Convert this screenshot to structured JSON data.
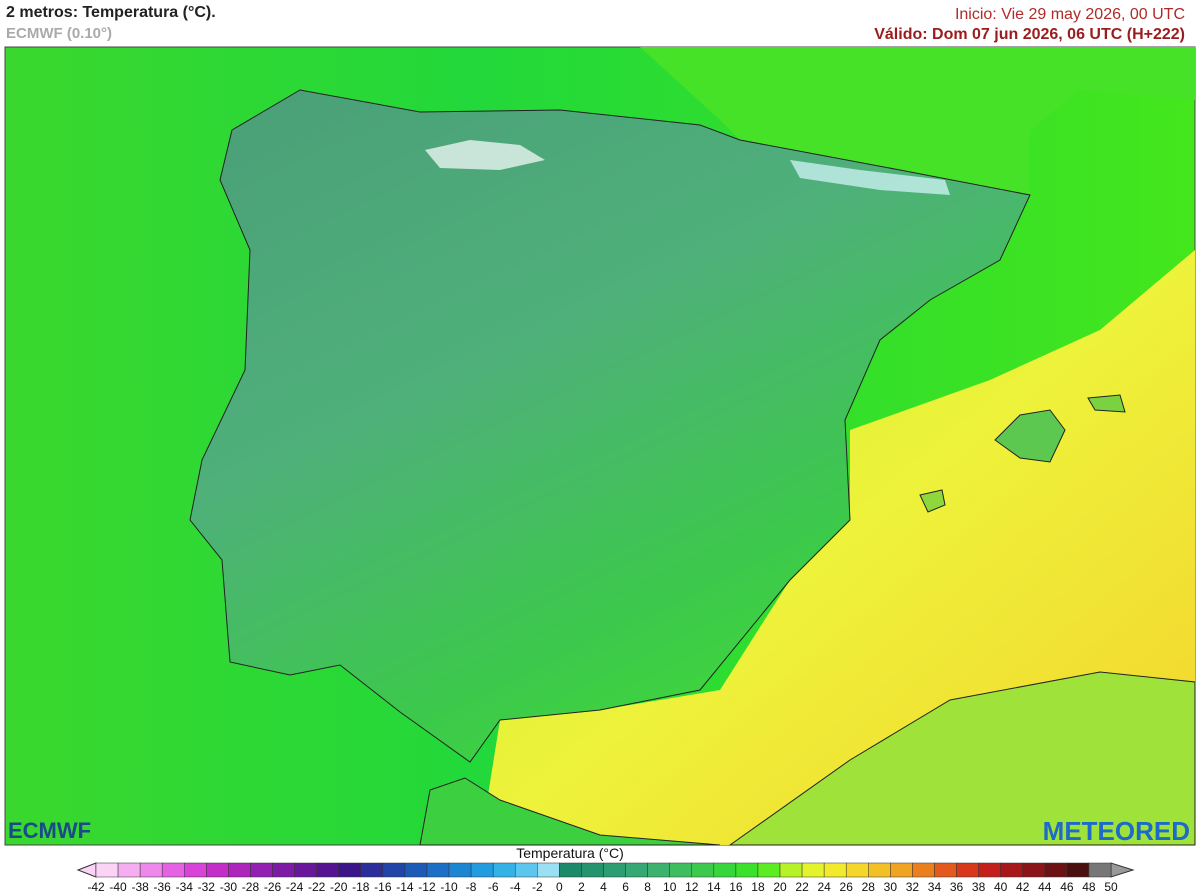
{
  "header": {
    "title": "2 metros: Temperatura (°C).",
    "subtitle": "ECMWF (0.10°)",
    "inicio": "Inicio: Vie 29 may 2026, 00 UTC",
    "valido": "Válido: Dom 07 jun 2026, 06 UTC (H+222)"
  },
  "logos": {
    "left": "ECMWF",
    "right": "METEORED"
  },
  "legend": {
    "title": "Temperatura (°C)",
    "ticks": [
      -42,
      -40,
      -38,
      -36,
      -34,
      -32,
      -30,
      -28,
      -26,
      -24,
      -22,
      -20,
      -18,
      -16,
      -14,
      -12,
      -10,
      -8,
      -6,
      -4,
      -2,
      0,
      2,
      4,
      6,
      8,
      10,
      12,
      14,
      16,
      18,
      20,
      22,
      24,
      26,
      28,
      30,
      32,
      34,
      36,
      38,
      40,
      42,
      44,
      46,
      48,
      50
    ],
    "colors": [
      "#fbd3f6",
      "#f5aef0",
      "#ee88ea",
      "#e563e2",
      "#d843d8",
      "#c42ec8",
      "#ad25bb",
      "#9320b2",
      "#7d1ba7",
      "#68179c",
      "#551291",
      "#3c148a",
      "#2b2e98",
      "#2044a8",
      "#1c5ab8",
      "#1b6fc6",
      "#1c86d3",
      "#229ce0",
      "#33b2e8",
      "#5cc7ee",
      "#9adff4",
      "#1a8a6a",
      "#23946e",
      "#2d9e72",
      "#36a874",
      "#3db26e",
      "#3fbe60",
      "#3cca4e",
      "#37d63c",
      "#3be22c",
      "#5cec22",
      "#b6f227",
      "#e4f42c",
      "#f2ea2c",
      "#f4d72a",
      "#f3c026",
      "#f0a422",
      "#eb7f1e",
      "#e35a1c",
      "#d8371b",
      "#c41f1b",
      "#a8171a",
      "#8b1418",
      "#6c1215",
      "#4a1010",
      "#777777"
    ]
  }
}
